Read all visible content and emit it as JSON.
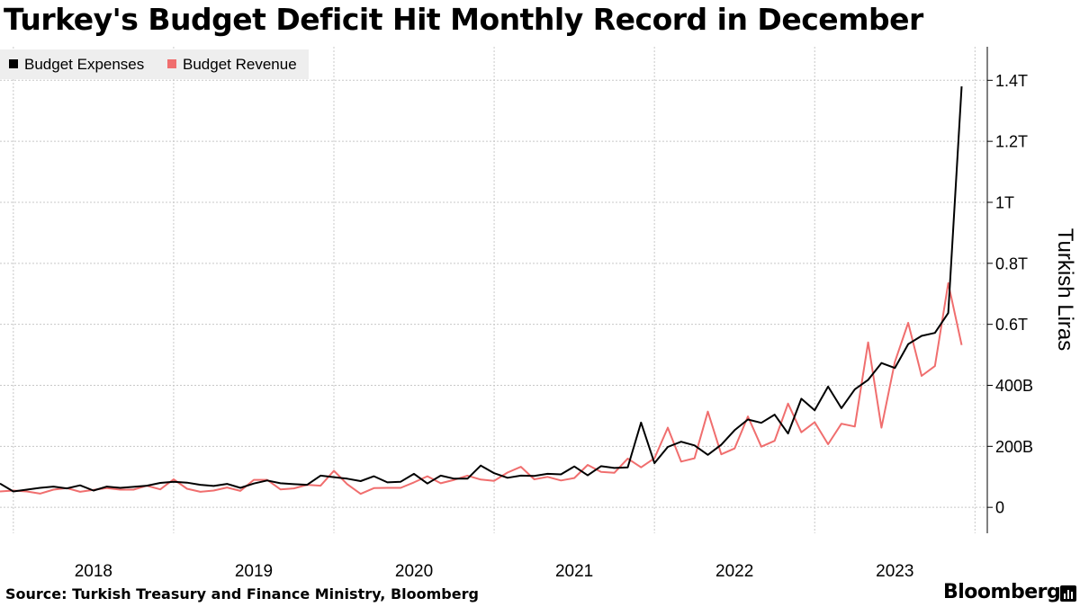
{
  "title": "Turkey's Budget Deficit Hit Monthly Record in December",
  "footer": {
    "source": "Source: Turkish Treasury and Finance Ministry, Bloomberg",
    "brand": "Bloomberg"
  },
  "chart_data": {
    "type": "line",
    "title": "Turkey's Budget Deficit Hit Monthly Record in December",
    "ylabel": "Turkish Liras",
    "xlabel": "",
    "x_start": "2017-12",
    "x_tick_labels": [
      "2018",
      "2019",
      "2020",
      "2021",
      "2022",
      "2023"
    ],
    "y_ticks": [
      {
        "value": 0,
        "label": "0"
      },
      {
        "value": 200,
        "label": "200B"
      },
      {
        "value": 400,
        "label": "400B"
      },
      {
        "value": 600,
        "label": "0.6T"
      },
      {
        "value": 800,
        "label": "0.8T"
      },
      {
        "value": 1000,
        "label": "1T"
      },
      {
        "value": 1200,
        "label": "1.2T"
      },
      {
        "value": 1400,
        "label": "1.4T"
      }
    ],
    "ylim": [
      -85,
      1510
    ],
    "unit": "billion TRY",
    "grid": true,
    "legend_position": "top-left",
    "series": [
      {
        "name": "Budget Expenses",
        "color": "#000000",
        "values": [
          78,
          52,
          58,
          64,
          68,
          62,
          72,
          55,
          68,
          64,
          67,
          71,
          80,
          84,
          81,
          74,
          70,
          77,
          64,
          78,
          88,
          79,
          76,
          74,
          104,
          99,
          94,
          86,
          102,
          82,
          84,
          110,
          78,
          104,
          94,
          94,
          137,
          112,
          97,
          104,
          103,
          110,
          108,
          134,
          105,
          135,
          129,
          131,
          278,
          145,
          198,
          215,
          203,
          172,
          205,
          253,
          288,
          277,
          304,
          242,
          356,
          318,
          396,
          325,
          387,
          418,
          473,
          457,
          535,
          562,
          572,
          637,
          1380
        ]
      },
      {
        "name": "Budget Revenue",
        "color": "#f06e6e",
        "values": [
          52,
          55,
          52,
          45,
          58,
          63,
          51,
          57,
          63,
          58,
          58,
          71,
          59,
          92,
          61,
          51,
          55,
          65,
          54,
          90,
          90,
          59,
          62,
          74,
          71,
          120,
          76,
          44,
          63,
          64,
          64,
          82,
          102,
          79,
          90,
          104,
          91,
          87,
          114,
          133,
          92,
          100,
          88,
          96,
          139,
          116,
          113,
          160,
          131,
          161,
          261,
          150,
          161,
          314,
          174,
          193,
          298,
          199,
          218,
          340,
          246,
          279,
          207,
          274,
          265,
          541,
          261,
          477,
          605,
          431,
          463,
          735,
          532
        ]
      }
    ]
  }
}
